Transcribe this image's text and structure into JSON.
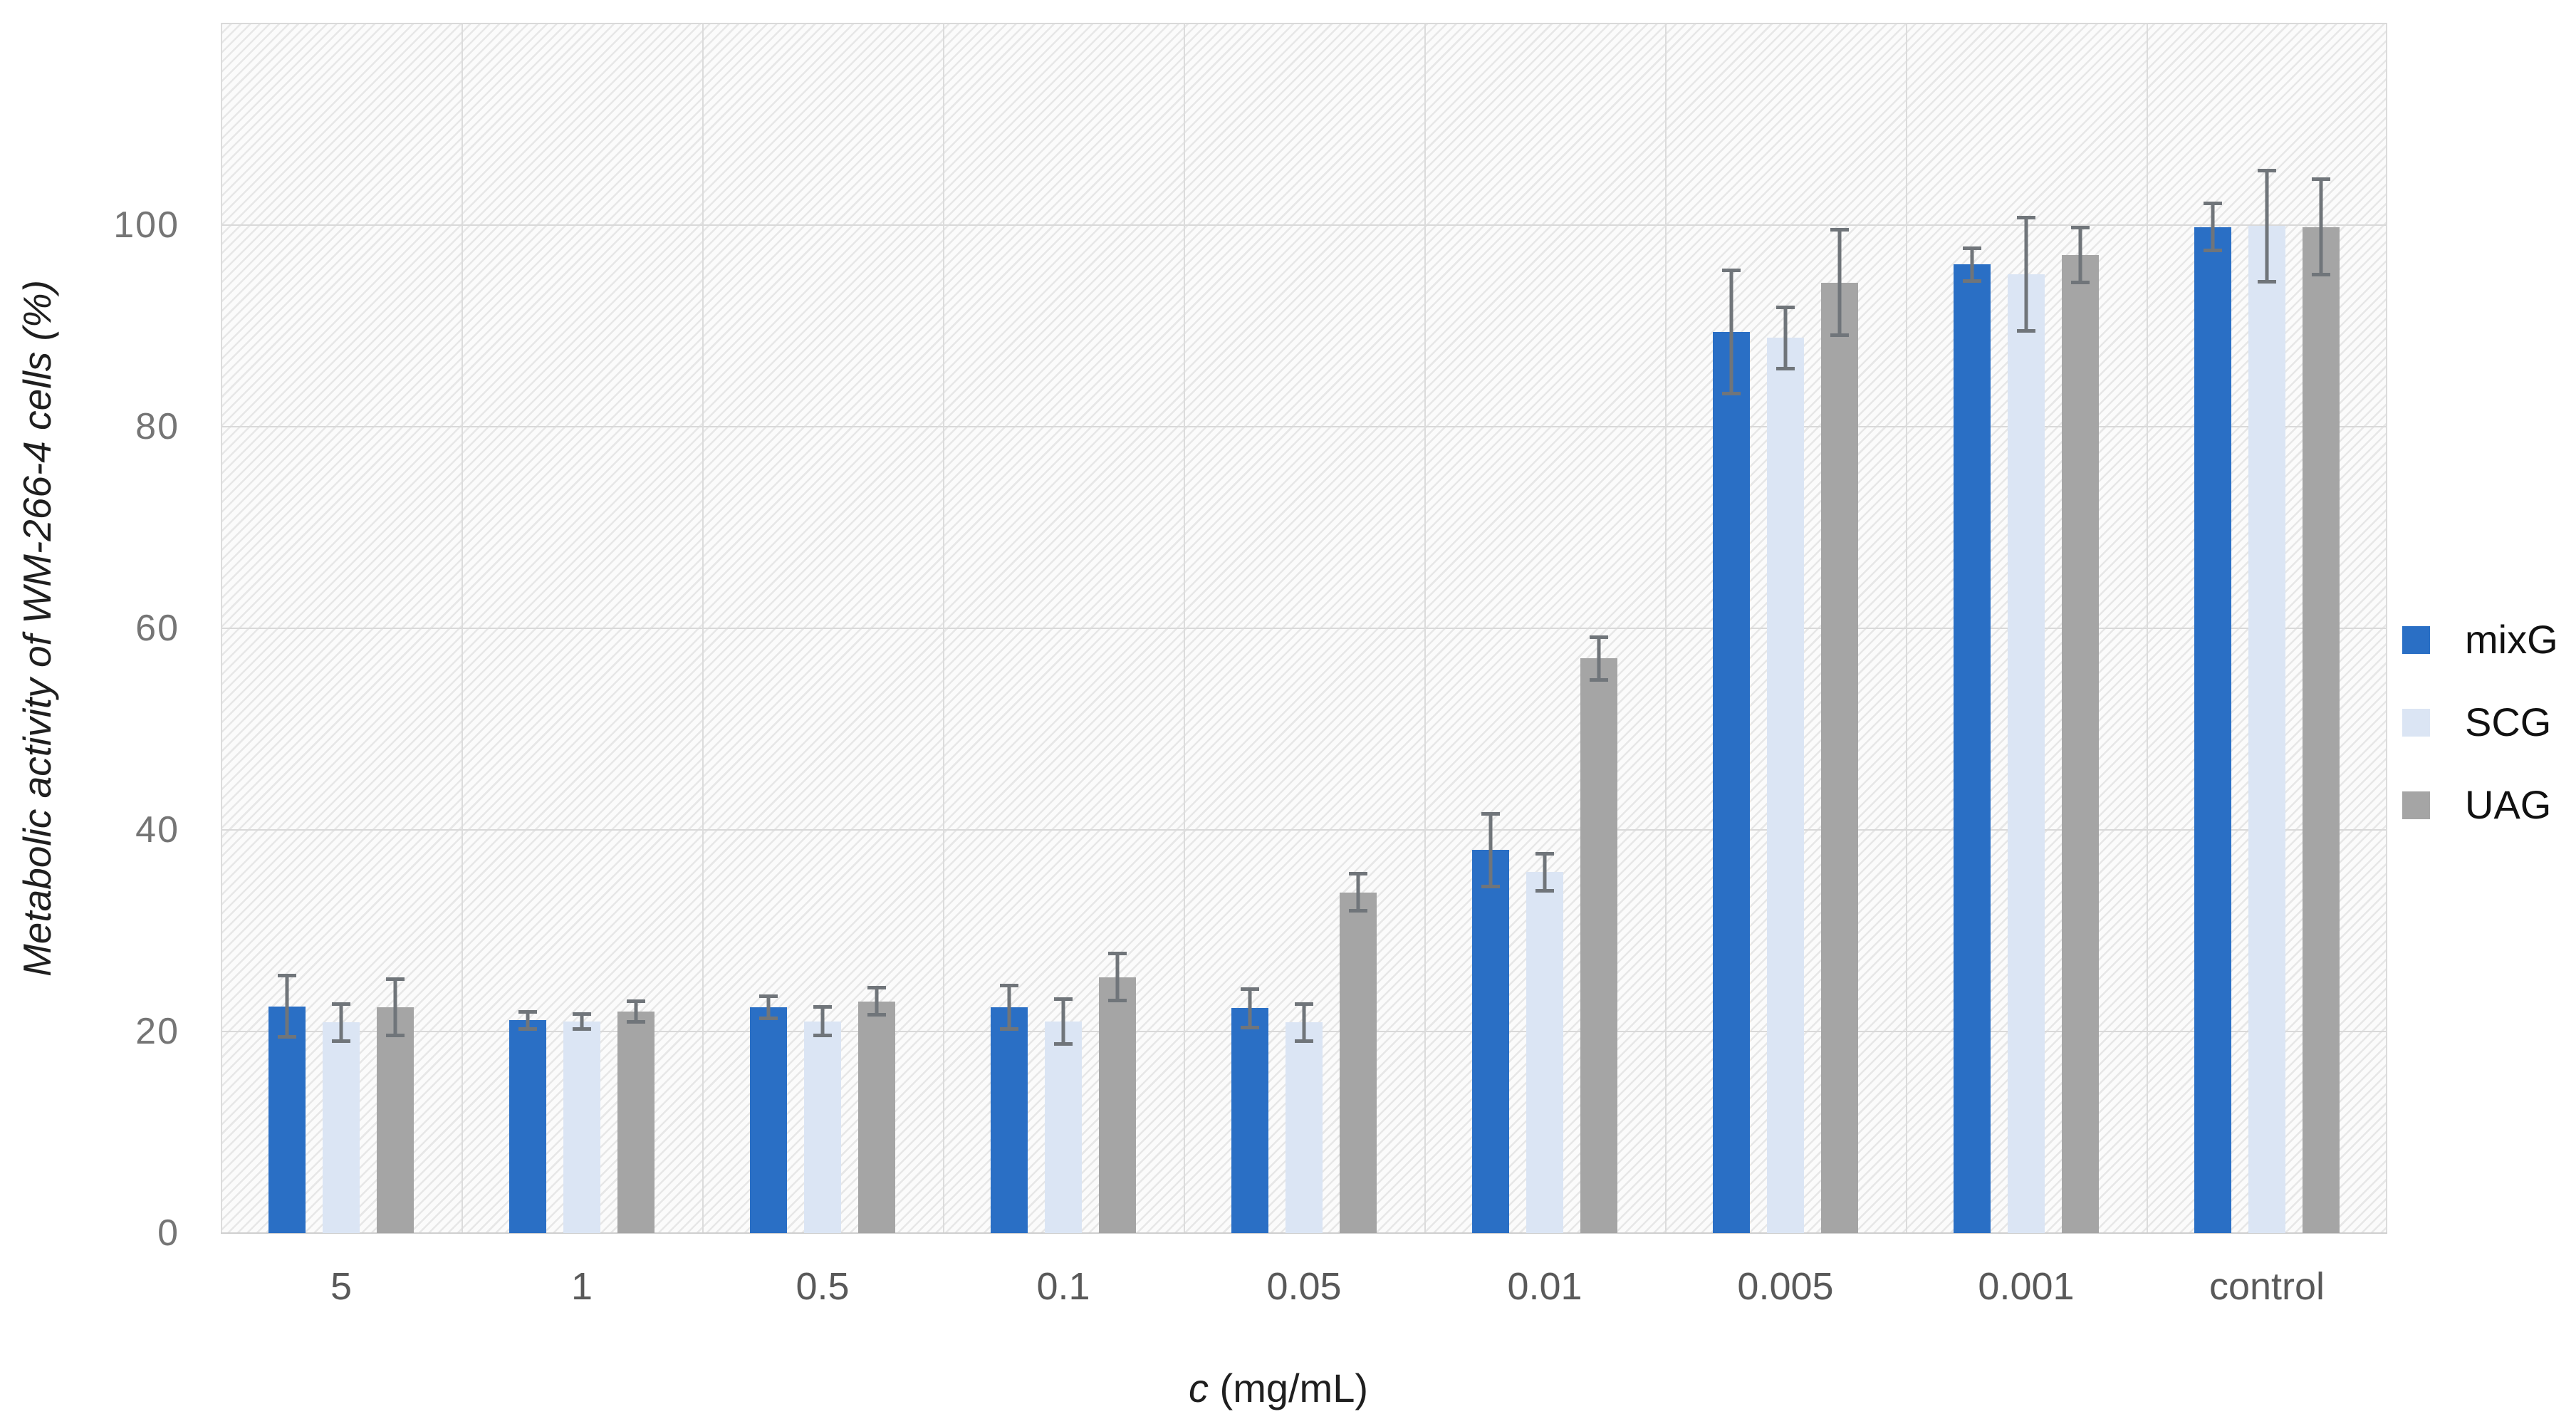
{
  "chart_data": {
    "type": "bar",
    "title": "",
    "ylabel": "Metabolic activity of WM-266-4 cells (%)",
    "xlabel": "c (mg/mL)",
    "xlabel_italic": "c",
    "xlabel_rest": " (mg/mL)",
    "categories": [
      "5",
      "1",
      "0.5",
      "0.1",
      "0.05",
      "0.01",
      "0.005",
      "0.001",
      "control"
    ],
    "series": [
      {
        "name": "mixG",
        "color": "#2a6fc5",
        "values": [
          22.5,
          21.1,
          22.4,
          22.4,
          22.3,
          38.0,
          89.4,
          96.1,
          99.8
        ],
        "errors": [
          3.2,
          1.0,
          1.3,
          2.3,
          2.1,
          3.8,
          6.3,
          1.8,
          2.5
        ]
      },
      {
        "name": "SCG",
        "color": "#dbe5f4",
        "values": [
          20.9,
          21.0,
          21.0,
          21.0,
          20.9,
          35.8,
          88.8,
          95.1,
          99.9
        ],
        "errors": [
          2.0,
          0.9,
          1.6,
          2.4,
          2.0,
          2.0,
          3.2,
          5.8,
          5.7
        ]
      },
      {
        "name": "UAG",
        "color": "#a5a5a5",
        "values": [
          22.4,
          22.0,
          23.0,
          25.4,
          33.8,
          57.0,
          94.3,
          97.0,
          99.8
        ],
        "errors": [
          3.0,
          1.2,
          1.5,
          2.5,
          2.0,
          2.3,
          5.4,
          2.9,
          4.9
        ]
      }
    ],
    "y_ticks": [
      0,
      20,
      40,
      60,
      80,
      100
    ],
    "ylim": [
      0,
      120
    ],
    "grid": true,
    "error_bars": true,
    "legend_position": "right"
  },
  "styles": {
    "gridline_color": "#d9d9d9",
    "vertical_gridline_color": "#dcdcdc",
    "error_bar_color": "#70757a",
    "y_tick_color": "#757575",
    "x_tick_color": "#595959",
    "axis_title_color": "#1f1f1f",
    "hatch_line_color": "#e7e7e7",
    "hatch_bg_color": "#fbfbfb"
  }
}
